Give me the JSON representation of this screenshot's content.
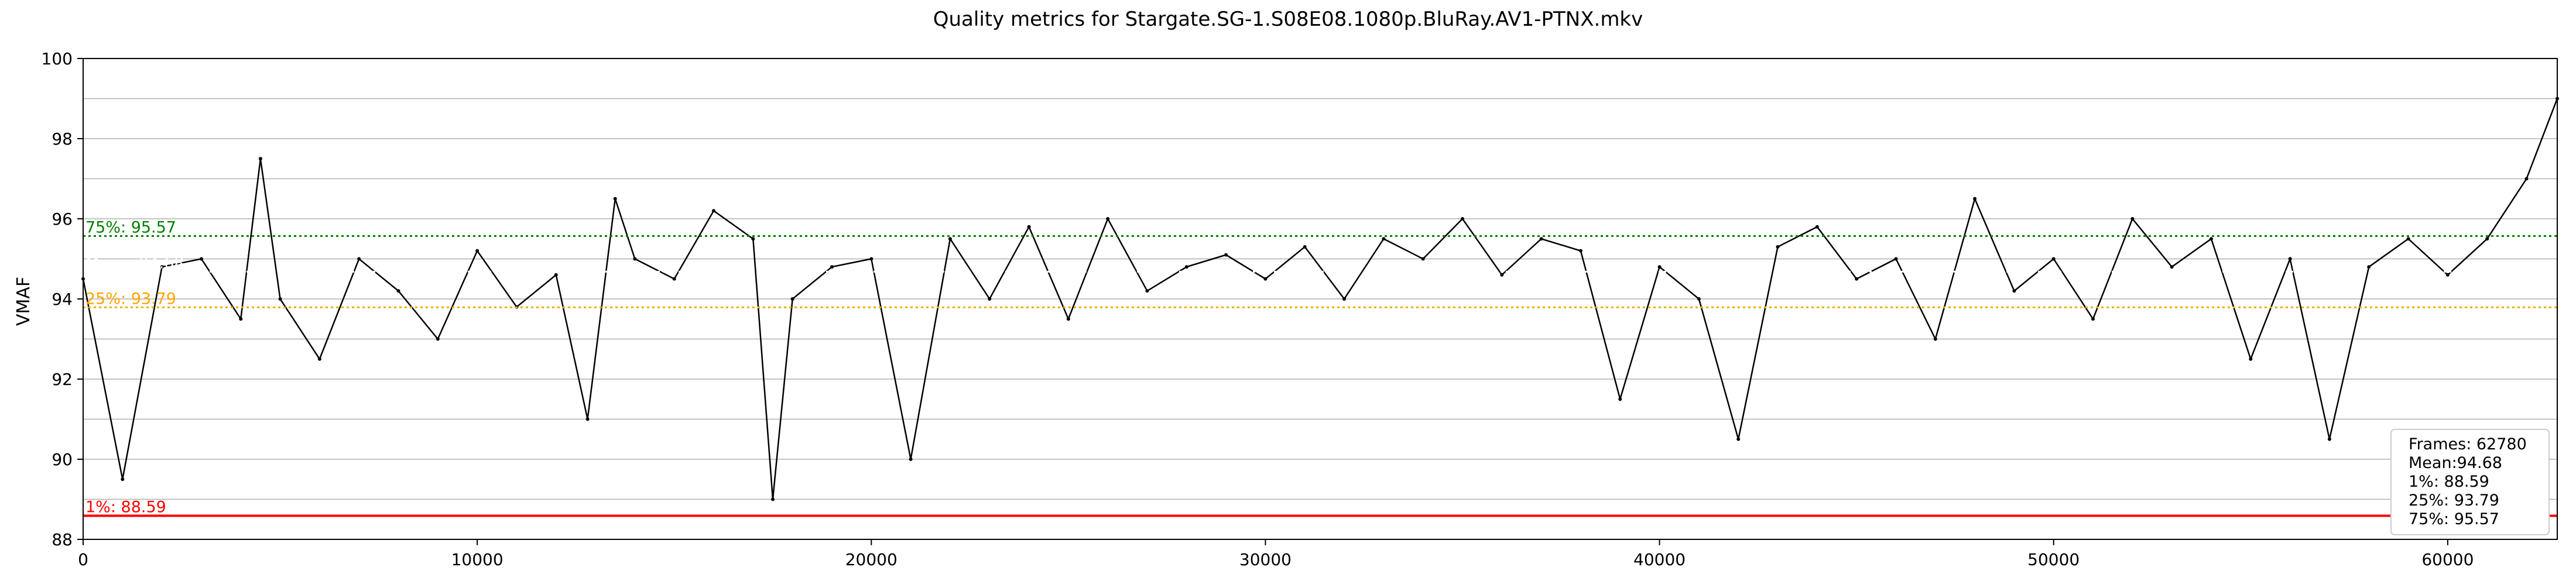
{
  "chart_data": {
    "type": "line",
    "title": "Quality metrics for Stargate.SG-1.S08E08.1080p.BluRay.AV1-PTNX.mkv",
    "xlabel": "",
    "ylabel": "VMAF",
    "xlim": [
      0,
      62780
    ],
    "ylim": [
      88,
      100
    ],
    "x_ticks": [
      0,
      10000,
      20000,
      30000,
      40000,
      50000,
      60000
    ],
    "y_ticks": [
      88,
      90,
      92,
      94,
      96,
      98,
      100
    ],
    "grid": true,
    "series": [
      {
        "color": "#000000",
        "x": [
          0,
          1000,
          2000,
          3000,
          4000,
          4500,
          5000,
          6000,
          7000,
          8000,
          9000,
          10000,
          11000,
          12000,
          12800,
          13500,
          14000,
          15000,
          16000,
          17000,
          17500,
          18000,
          19000,
          20000,
          21000,
          22000,
          23000,
          24000,
          25000,
          26000,
          27000,
          28000,
          29000,
          30000,
          31000,
          32000,
          33000,
          34000,
          35000,
          36000,
          37000,
          38000,
          39000,
          40000,
          41000,
          42000,
          43000,
          44000,
          45000,
          46000,
          47000,
          48000,
          49000,
          50000,
          51000,
          52000,
          53000,
          54000,
          55000,
          56000,
          57000,
          58000,
          59000,
          60000,
          61000,
          62000,
          62780
        ],
        "y": [
          94.5,
          89.5,
          94.8,
          95.0,
          93.5,
          97.5,
          94.0,
          92.5,
          95.0,
          94.2,
          93.0,
          95.2,
          93.8,
          94.6,
          91.0,
          96.5,
          95.0,
          94.5,
          96.2,
          95.5,
          89.0,
          94.0,
          94.8,
          95.0,
          90.0,
          95.5,
          94.0,
          95.8,
          93.5,
          96.0,
          94.2,
          94.8,
          95.1,
          94.5,
          95.3,
          94.0,
          95.5,
          95.0,
          96.0,
          94.6,
          95.5,
          95.2,
          91.5,
          94.8,
          94.0,
          90.5,
          95.3,
          95.8,
          94.5,
          95.0,
          93.0,
          96.5,
          94.2,
          95.0,
          93.5,
          96.0,
          94.8,
          95.5,
          92.5,
          95.0,
          90.5,
          94.8,
          95.5,
          94.6,
          95.5,
          97.0,
          99.0
        ]
      }
    ],
    "reference_lines": [
      {
        "label": "75%: 95.57",
        "value": 95.57,
        "color": "#008000",
        "style": "dotted"
      },
      {
        "label": "Mean: 94.68",
        "value": 94.68,
        "color": "#ffffff",
        "style": "dotted"
      },
      {
        "label": "25%: 93.79",
        "value": 93.79,
        "color": "#ffa500",
        "style": "dotted"
      },
      {
        "label": "1%: 88.59",
        "value": 88.59,
        "color": "#ff0000",
        "style": "solid"
      }
    ],
    "legend": {
      "position": "bottom-right",
      "lines": [
        "Frames: 62780",
        "Mean:94.68",
        "1%: 88.59",
        "25%: 93.79",
        "75%: 95.57"
      ]
    }
  }
}
